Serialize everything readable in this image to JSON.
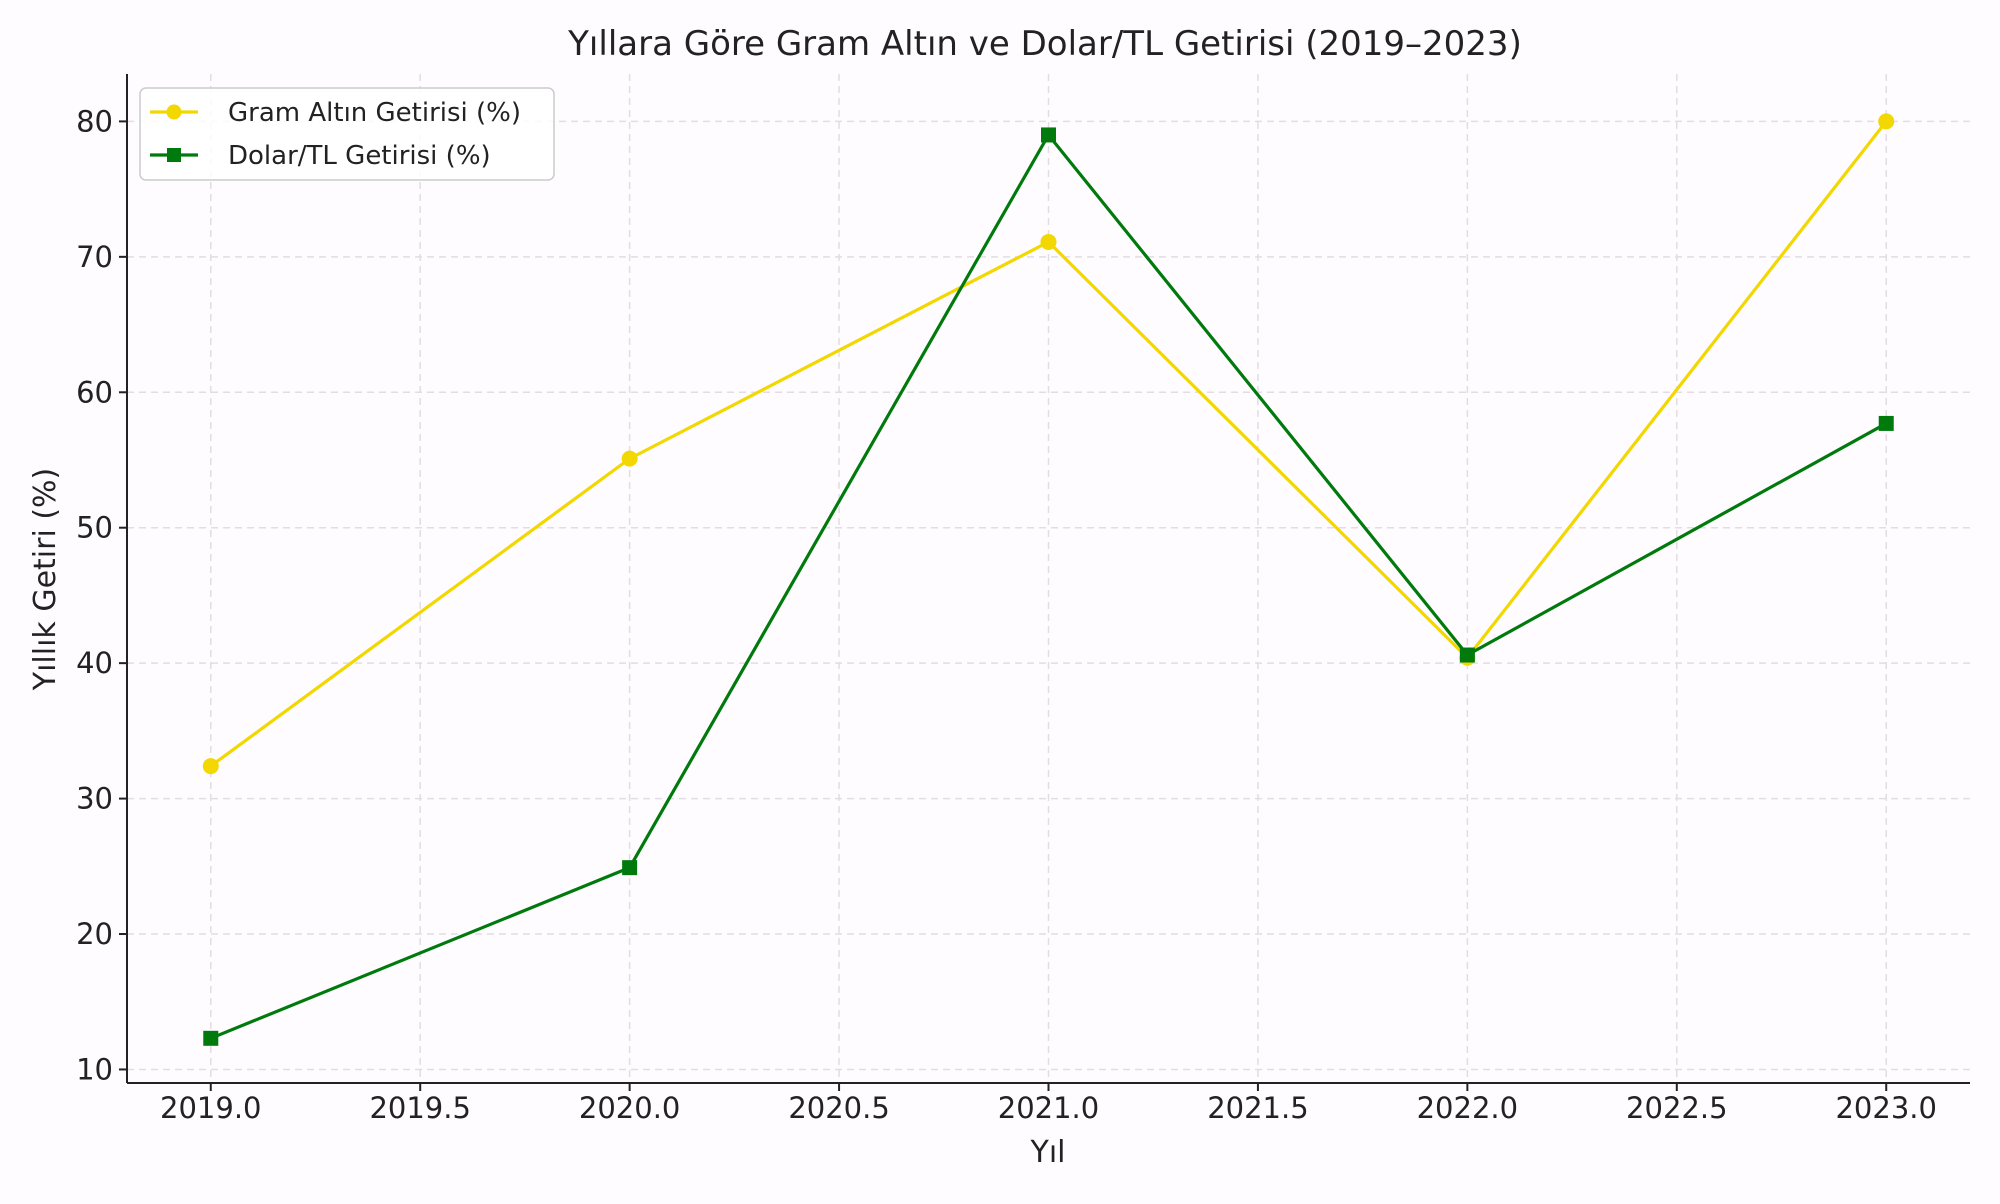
{
  "chart_data": {
    "type": "line",
    "title": "Yıllara Göre Gram Altın ve Dolar/TL Getirisi (2019–2023)",
    "xlabel": "Yıl",
    "ylabel": "Yıllık Getiri (%)",
    "xlim": [
      2018.8,
      2023.2
    ],
    "ylim": [
      9,
      83.5
    ],
    "xticks": [
      2019.0,
      2019.5,
      2020.0,
      2020.5,
      2021.0,
      2021.5,
      2022.0,
      2022.5,
      2023.0
    ],
    "xtick_labels": [
      "2019.0",
      "2019.5",
      "2020.0",
      "2020.5",
      "2021.0",
      "2021.5",
      "2022.0",
      "2022.5",
      "2023.0"
    ],
    "yticks": [
      10,
      20,
      30,
      40,
      50,
      60,
      70,
      80
    ],
    "ytick_labels": [
      "10",
      "20",
      "30",
      "40",
      "50",
      "60",
      "70",
      "80"
    ],
    "grid": true,
    "legend_position": "top-left",
    "x": [
      2019,
      2020,
      2021,
      2022,
      2023
    ],
    "series": [
      {
        "name": "Gram Altın Getirisi (%)",
        "values": [
          32.4,
          55.1,
          71.1,
          40.4,
          80.0
        ],
        "color": "#f2d700",
        "marker": "circle"
      },
      {
        "name": "Dolar/TL Getirisi (%)",
        "values": [
          12.3,
          24.9,
          79.0,
          40.6,
          57.7
        ],
        "color": "#007a0c",
        "marker": "square"
      }
    ]
  }
}
